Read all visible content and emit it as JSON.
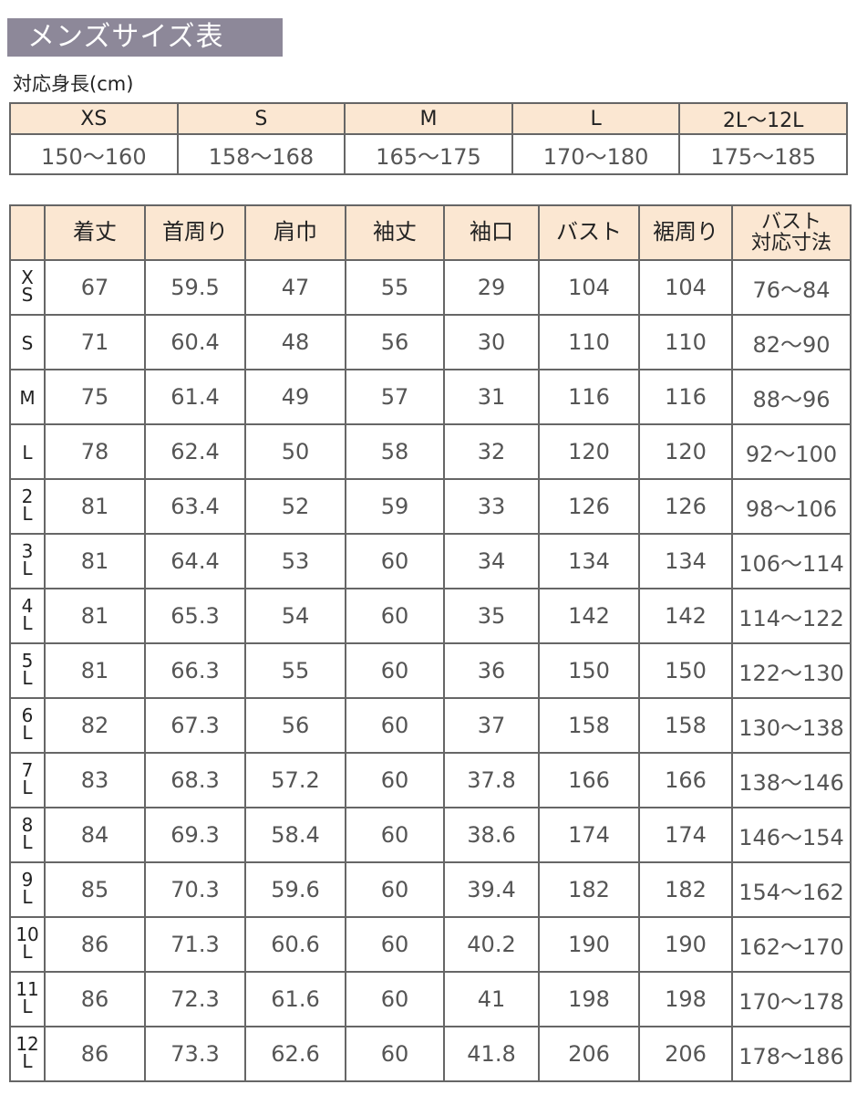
{
  "title": "メンズサイズ表",
  "height_section": {
    "label": "対応身長(cm)",
    "sizes": [
      "XS",
      "S",
      "M",
      "L",
      "2L〜12L"
    ],
    "ranges": [
      "150〜160",
      "158〜168",
      "165〜175",
      "170〜180",
      "175〜185"
    ]
  },
  "size_table": {
    "headers": [
      "",
      "着丈",
      "首周り",
      "肩巾",
      "袖丈",
      "袖口",
      "バスト",
      "裾周り",
      "バスト対応寸法"
    ],
    "header_last_lines": [
      "バスト",
      "対応寸法"
    ],
    "rows": [
      {
        "size": "XS",
        "values": [
          "67",
          "59.5",
          "47",
          "55",
          "29",
          "104",
          "104",
          "76〜84"
        ]
      },
      {
        "size": "S",
        "values": [
          "71",
          "60.4",
          "48",
          "56",
          "30",
          "110",
          "110",
          "82〜90"
        ]
      },
      {
        "size": "M",
        "values": [
          "75",
          "61.4",
          "49",
          "57",
          "31",
          "116",
          "116",
          "88〜96"
        ]
      },
      {
        "size": "L",
        "values": [
          "78",
          "62.4",
          "50",
          "58",
          "32",
          "120",
          "120",
          "92〜100"
        ]
      },
      {
        "size": "2L",
        "values": [
          "81",
          "63.4",
          "52",
          "59",
          "33",
          "126",
          "126",
          "98〜106"
        ]
      },
      {
        "size": "3L",
        "values": [
          "81",
          "64.4",
          "53",
          "60",
          "34",
          "134",
          "134",
          "106〜114"
        ]
      },
      {
        "size": "4L",
        "values": [
          "81",
          "65.3",
          "54",
          "60",
          "35",
          "142",
          "142",
          "114〜122"
        ]
      },
      {
        "size": "5L",
        "values": [
          "81",
          "66.3",
          "55",
          "60",
          "36",
          "150",
          "150",
          "122〜130"
        ]
      },
      {
        "size": "6L",
        "values": [
          "82",
          "67.3",
          "56",
          "60",
          "37",
          "158",
          "158",
          "130〜138"
        ]
      },
      {
        "size": "7L",
        "values": [
          "83",
          "68.3",
          "57.2",
          "60",
          "37.8",
          "166",
          "166",
          "138〜146"
        ]
      },
      {
        "size": "8L",
        "values": [
          "84",
          "69.3",
          "58.4",
          "60",
          "38.6",
          "174",
          "174",
          "146〜154"
        ]
      },
      {
        "size": "9L",
        "values": [
          "85",
          "70.3",
          "59.6",
          "60",
          "39.4",
          "182",
          "182",
          "154〜162"
        ]
      },
      {
        "size": "10L",
        "values": [
          "86",
          "71.3",
          "60.6",
          "60",
          "40.2",
          "190",
          "190",
          "162〜170"
        ]
      },
      {
        "size": "11L",
        "values": [
          "86",
          "72.3",
          "61.6",
          "60",
          "41",
          "198",
          "198",
          "170〜178"
        ]
      },
      {
        "size": "12L",
        "values": [
          "86",
          "73.3",
          "62.6",
          "60",
          "41.8",
          "206",
          "206",
          "178〜186"
        ]
      }
    ]
  },
  "colors": {
    "title_bar": "#8d8899",
    "header_bg": "#fbe7d2",
    "border": "#666666"
  }
}
